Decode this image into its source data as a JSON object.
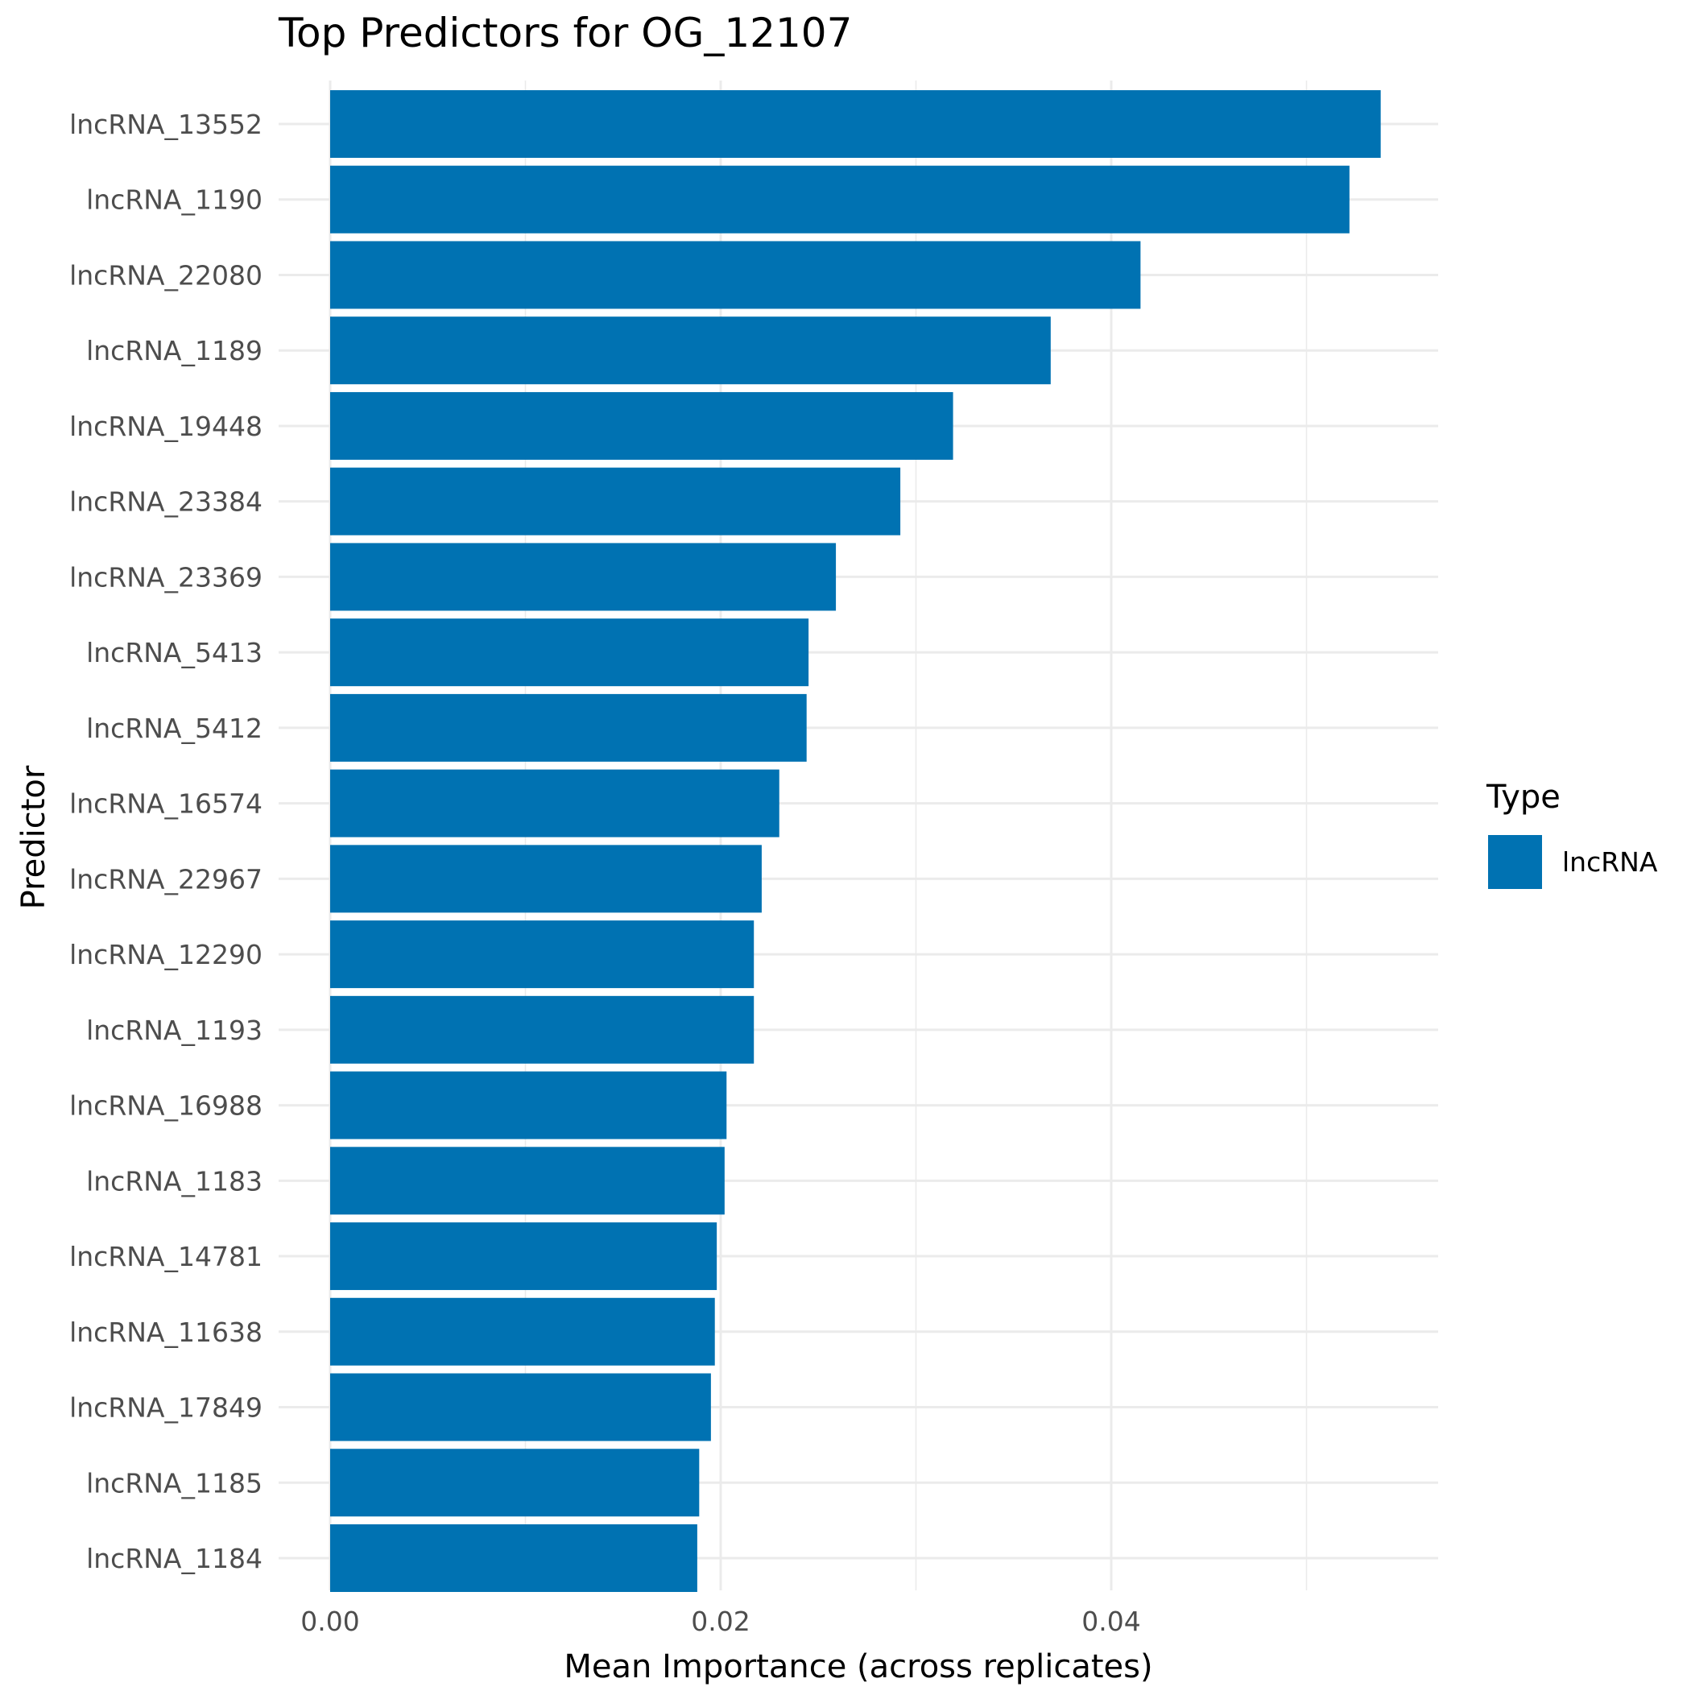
{
  "chart_data": {
    "type": "bar",
    "orientation": "horizontal",
    "title": "Top Predictors for OG_12107",
    "xlabel": "Mean Importance (across replicates)",
    "ylabel": "Predictor",
    "xlim": [
      0,
      0.0565
    ],
    "x_ticks": [
      {
        "value": 0.0,
        "label": "0.00"
      },
      {
        "value": 0.02,
        "label": "0.02"
      },
      {
        "value": 0.04,
        "label": "0.04"
      }
    ],
    "x_minor_ticks": [
      0.01,
      0.03,
      0.05
    ],
    "grid": true,
    "legend": {
      "title": "Type",
      "position": "right"
    },
    "categories": [
      "lncRNA_13552",
      "lncRNA_1190",
      "lncRNA_22080",
      "lncRNA_1189",
      "lncRNA_19448",
      "lncRNA_23384",
      "lncRNA_23369",
      "lncRNA_5413",
      "lncRNA_5412",
      "lncRNA_16574",
      "lncRNA_22967",
      "lncRNA_12290",
      "lncRNA_1193",
      "lncRNA_16988",
      "lncRNA_1183",
      "lncRNA_14781",
      "lncRNA_11638",
      "lncRNA_17849",
      "lncRNA_1185",
      "lncRNA_1184"
    ],
    "series": [
      {
        "name": "lncRNA",
        "color": "#0072B2",
        "values": [
          0.0538,
          0.0522,
          0.0415,
          0.0369,
          0.0319,
          0.0292,
          0.0259,
          0.0245,
          0.0244,
          0.023,
          0.0221,
          0.0217,
          0.0217,
          0.0203,
          0.0202,
          0.0198,
          0.0197,
          0.0195,
          0.0189,
          0.0188
        ]
      }
    ]
  }
}
